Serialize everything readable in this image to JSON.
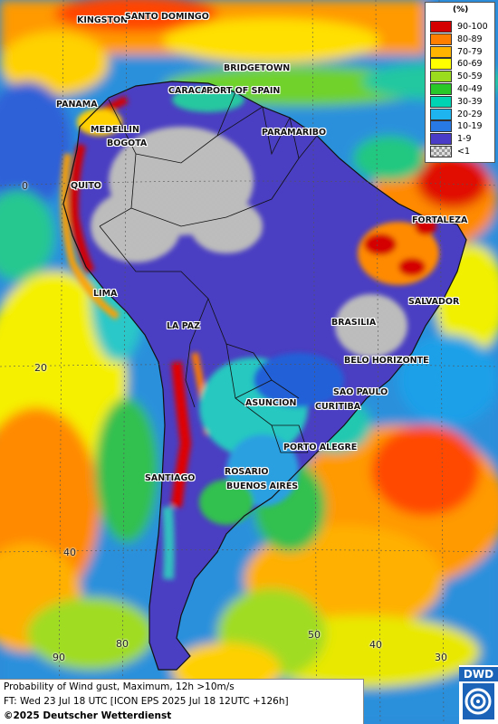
{
  "legend": {
    "unit": "(%)",
    "items": [
      {
        "label": "90-100",
        "color": "#d40000"
      },
      {
        "label": "80-89",
        "color": "#ff7f00"
      },
      {
        "label": "70-79",
        "color": "#ffb400"
      },
      {
        "label": "60-69",
        "color": "#ffff00"
      },
      {
        "label": "50-59",
        "color": "#9cdc1e"
      },
      {
        "label": "40-49",
        "color": "#28c828"
      },
      {
        "label": "30-39",
        "color": "#00d2b4"
      },
      {
        "label": "20-29",
        "color": "#1eb4f0"
      },
      {
        "label": "10-19",
        "color": "#2878e6"
      },
      {
        "label": "1-9",
        "color": "#4b3cc8"
      },
      {
        "label": "<1",
        "color": "checker"
      }
    ]
  },
  "cities": [
    {
      "id": "kingston",
      "name": "KINGSTON"
    },
    {
      "id": "santo-domingo",
      "name": "SANTO DOMINGO"
    },
    {
      "id": "bridgetown",
      "name": "BRIDGETOWN"
    },
    {
      "id": "caracas",
      "name": "CARACAS"
    },
    {
      "id": "port-of-spain",
      "name": "PORT OF SPAIN"
    },
    {
      "id": "panama",
      "name": "PANAMA"
    },
    {
      "id": "medellin",
      "name": "MEDELLIN"
    },
    {
      "id": "bogota",
      "name": "BOGOTA"
    },
    {
      "id": "paramaribo",
      "name": "PARAMARIBO"
    },
    {
      "id": "quito",
      "name": "QUITO"
    },
    {
      "id": "fortaleza",
      "name": "FORTALEZA"
    },
    {
      "id": "lima",
      "name": "LIMA"
    },
    {
      "id": "salvador",
      "name": "SALVADOR"
    },
    {
      "id": "brasilia",
      "name": "BRASILIA"
    },
    {
      "id": "la-paz",
      "name": "LA PAZ"
    },
    {
      "id": "belo-horizonte",
      "name": "BELO HORIZONTE"
    },
    {
      "id": "sao-paulo",
      "name": "SAO PAULO"
    },
    {
      "id": "asuncion",
      "name": "ASUNCION"
    },
    {
      "id": "curitiba",
      "name": "CURITIBA"
    },
    {
      "id": "porto-alegre",
      "name": "PORTO ALEGRE"
    },
    {
      "id": "rosario",
      "name": "ROSARIO"
    },
    {
      "id": "santiago",
      "name": "SANTIAGO"
    },
    {
      "id": "buenos-aires",
      "name": "BUENOS AIRES"
    }
  ],
  "grid_labels": [
    {
      "id": "lat-0",
      "text": "0"
    },
    {
      "id": "lat-20",
      "text": "20"
    },
    {
      "id": "lat-40",
      "text": "40"
    },
    {
      "id": "lon-90",
      "text": "90"
    },
    {
      "id": "lon-80",
      "text": "80"
    },
    {
      "id": "lon-50",
      "text": "50"
    },
    {
      "id": "lon-40",
      "text": "40"
    },
    {
      "id": "lon-30",
      "text": "30"
    }
  ],
  "footer": {
    "line1": "Probability of Wind gust, Maximum, 12h >10m/s",
    "line2": "FT: Wed 23 Jul 18 UTC [ICON EPS 2025 Jul 18 12UTC +126h]",
    "line3": "©2025 Deutscher Wetterdienst"
  },
  "logo": {
    "text": "DWD",
    "icon": "dwd-swirl-icon"
  }
}
